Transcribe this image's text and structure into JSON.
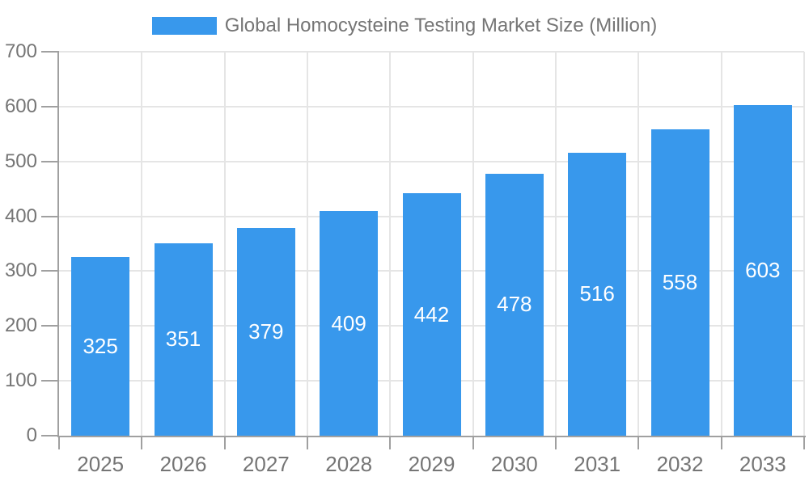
{
  "chart_data": {
    "type": "bar",
    "title": "Global Homocysteine Testing Market Size (Million)",
    "categories": [
      "2025",
      "2026",
      "2027",
      "2028",
      "2029",
      "2030",
      "2031",
      "2032",
      "2033"
    ],
    "values": [
      325,
      351,
      379,
      409,
      442,
      478,
      516,
      558,
      603
    ],
    "xlabel": "",
    "ylabel": "",
    "ylim": [
      0,
      700
    ],
    "yticks": [
      0,
      100,
      200,
      300,
      400,
      500,
      600,
      700
    ],
    "grid": true,
    "bar_value_labels_visible": true,
    "legend_position": "top",
    "colors": {
      "bar": "#3898EC",
      "bar_label": "#FFFFFF",
      "axis_line": "#A0A0A0",
      "grid_line": "#E5E5E5",
      "tick_label": "#757575",
      "legend_text": "#757575",
      "background": "#FFFFFF"
    }
  },
  "legend": {
    "items": [
      {
        "label": "Global Homocysteine Testing Market Size (Million)",
        "color": "#3898EC"
      }
    ]
  }
}
